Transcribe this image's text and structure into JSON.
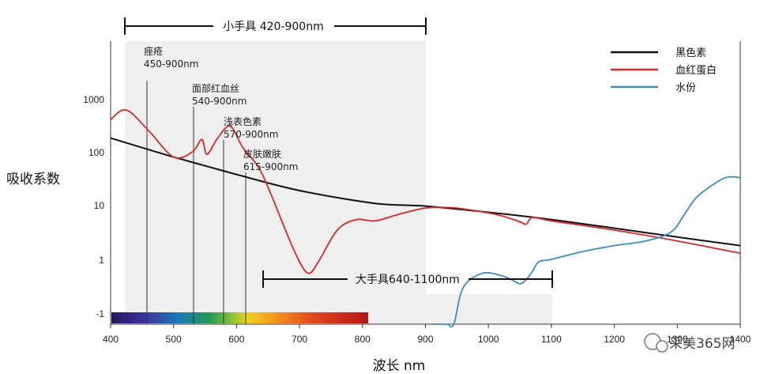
{
  "chart_data": {
    "type": "line",
    "title": "",
    "xlabel": "波长 nm",
    "ylabel": "吸收系数",
    "xlim": [
      400,
      1400
    ],
    "y_scale": "log",
    "y_ticks": [
      "1000",
      "100",
      "10",
      "1",
      "-1"
    ],
    "x_ticks": [
      400,
      500,
      600,
      700,
      800,
      900,
      1000,
      1100,
      1200,
      1300,
      1400
    ],
    "legend_position": "top-right",
    "series": [
      {
        "name": "黑色素",
        "color": "#111111",
        "x": [
          400,
          500,
          600,
          700,
          820,
          900,
          1000,
          1100,
          1200,
          1300,
          1400
        ],
        "y": [
          180,
          80,
          38,
          19,
          11,
          9.8,
          7.5,
          5.5,
          3.8,
          2.6,
          1.8
        ]
      },
      {
        "name": "血红蛋白",
        "color": "#d7282a",
        "x": [
          400,
          425,
          460,
          500,
          530,
          545,
          553,
          570,
          590,
          610,
          640,
          680,
          700,
          715,
          730,
          760,
          790,
          820,
          860,
          900,
          940,
          980,
          1020,
          1050,
          1060,
          1070,
          1100,
          1200,
          1300,
          1400
        ],
        "y": [
          400,
          600,
          250,
          80,
          100,
          170,
          90,
          180,
          300,
          120,
          40,
          3,
          0.9,
          0.55,
          0.9,
          3.5,
          5.5,
          5.2,
          7,
          9,
          9.2,
          8,
          6.5,
          5.0,
          4.5,
          6.0,
          5.2,
          3.5,
          2.2,
          1.3
        ]
      },
      {
        "name": "水份",
        "color": "#3b8cc0",
        "x": [
          910,
          918,
          925,
          930,
          935,
          945,
          960,
          990,
          1020,
          1040,
          1050,
          1060,
          1070,
          1080,
          1100,
          1150,
          1200,
          1250,
          1290,
          1310,
          1330,
          1360,
          1380,
          1400
        ],
        "y": [
          0.01,
          0.018,
          0.025,
          0.02,
          0.018,
          0.035,
          0.3,
          0.55,
          0.5,
          0.4,
          0.35,
          0.42,
          0.6,
          0.9,
          1.0,
          1.4,
          1.8,
          2.2,
          3.2,
          6.5,
          14,
          26,
          34,
          33
        ]
      }
    ],
    "annotations": [
      {
        "label": "痤疮",
        "range": "450-900nm",
        "x": 455
      },
      {
        "label": "面部红血丝",
        "range": "540-900nm",
        "x": 530
      },
      {
        "label": "浅表色素",
        "range": "570-900nm",
        "x": 577
      },
      {
        "label": "皮肤嫩肤",
        "range": "615-900nm",
        "x": 612
      }
    ],
    "bands": [
      {
        "label": "小手具 420-900nm",
        "from": 420,
        "to": 900
      },
      {
        "label": "大手具640-1100nm",
        "from": 640,
        "to": 1100
      }
    ],
    "watermark": "采美365网"
  }
}
